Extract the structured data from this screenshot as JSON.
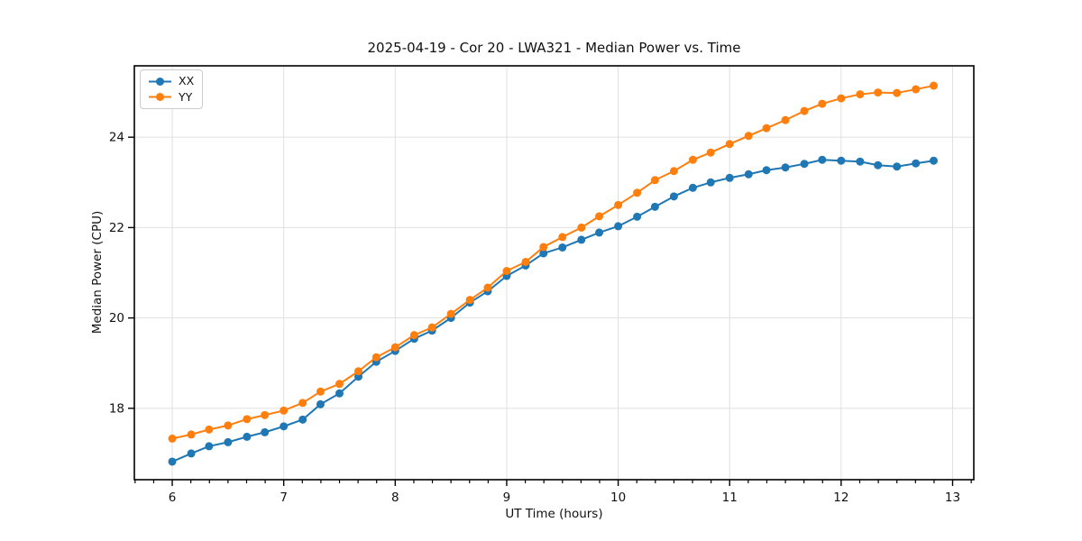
{
  "figure": {
    "background": "#ffffff",
    "text_color": "#111111",
    "grid_color": "#e0e0e0",
    "spine_color": "#000000"
  },
  "chart_data": {
    "type": "line",
    "title": "2025-04-19 - Cor 20 - LWA321 - Median Power vs. Time",
    "xlabel": "UT Time (hours)",
    "ylabel": "Median Power (CPU)",
    "xlim": [
      5.66,
      13.19
    ],
    "ylim": [
      16.42,
      25.58
    ],
    "xticks": [
      6,
      7,
      8,
      9,
      10,
      11,
      12,
      13
    ],
    "yticks": [
      18,
      20,
      22,
      24
    ],
    "x_minor_step": 0.16667,
    "grid": true,
    "legend_position": "upper-left",
    "marker": "circle",
    "x": [
      6,
      6.17,
      6.33,
      6.5,
      6.67,
      6.83,
      7,
      7.17,
      7.33,
      7.5,
      7.67,
      7.83,
      8,
      8.17,
      8.33,
      8.5,
      8.67,
      8.83,
      9,
      9.17,
      9.33,
      9.5,
      9.67,
      9.83,
      10,
      10.17,
      10.33,
      10.5,
      10.67,
      10.83,
      11,
      11.17,
      11.33,
      11.5,
      11.67,
      11.83,
      12,
      12.17,
      12.33,
      12.5,
      12.67,
      12.83
    ],
    "series": [
      {
        "name": "XX",
        "color": "#1f77b4",
        "values": [
          16.82,
          17.0,
          17.16,
          17.25,
          17.37,
          17.47,
          17.6,
          17.75,
          18.09,
          18.33,
          18.7,
          19.03,
          19.27,
          19.54,
          19.72,
          20.0,
          20.34,
          20.59,
          20.93,
          21.16,
          21.43,
          21.56,
          21.73,
          21.89,
          22.03,
          22.24,
          22.46,
          22.69,
          22.88,
          23.0,
          23.1,
          23.18,
          23.27,
          23.33,
          23.41,
          23.5,
          23.48,
          23.46,
          23.38,
          23.35,
          23.42,
          23.48
        ]
      },
      {
        "name": "YY",
        "color": "#ff7f0e",
        "values": [
          17.33,
          17.42,
          17.53,
          17.62,
          17.76,
          17.85,
          17.95,
          18.12,
          18.37,
          18.54,
          18.82,
          19.13,
          19.35,
          19.62,
          19.79,
          20.09,
          20.4,
          20.67,
          21.04,
          21.24,
          21.57,
          21.79,
          22.0,
          22.25,
          22.5,
          22.77,
          23.05,
          23.25,
          23.5,
          23.66,
          23.85,
          24.03,
          24.2,
          24.38,
          24.58,
          24.74,
          24.86,
          24.95,
          24.99,
          24.98,
          25.06,
          25.14
        ]
      }
    ]
  }
}
